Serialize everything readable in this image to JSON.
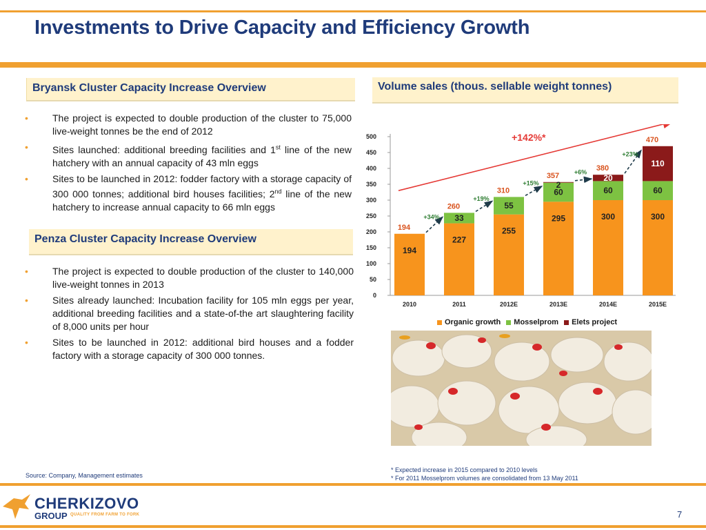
{
  "title": "Investments to Drive Capacity and Efficiency Growth",
  "bryansk": {
    "heading": "Bryansk Cluster Capacity Increase Overview",
    "bullets": [
      "The project is expected to double production of the cluster to 75,000 live-weight tonnes be the end of 2012",
      "Sites launched: additional breeding facilities and 1st line of the new hatchery with an annual capacity of 43 mln eggs",
      "Sites to be launched in 2012: fodder factory with a storage capacity of 300 000 tonnes; additional bird houses facilities; 2nd line of the new hatchery to increase annual capacity to 66 mln eggs"
    ]
  },
  "penza": {
    "heading": "Penza Cluster Capacity Increase Overview",
    "bullets": [
      "The project is expected to double production of the cluster to 140,000 live-weight tonnes in 2013",
      "Sites already launched: Incubation facility for 105 mln eggs per year, additional breeding facilities and a state-of-the art slaughtering facility of 8,000 units per hour",
      "Sites to be launched in 2012: additional bird houses and a fodder factory with a storage capacity of 300 000 tonnes."
    ]
  },
  "volume_heading": "Volume sales (thous. sellable weight tonnes)",
  "chart_data": {
    "type": "bar",
    "stacked": true,
    "categories": [
      "2010",
      "2011",
      "2012E",
      "2013E",
      "2014E",
      "2015E"
    ],
    "series": [
      {
        "name": "Organic growth",
        "color": "#f7941d",
        "values": [
          194,
          227,
          255,
          295,
          300,
          300
        ]
      },
      {
        "name": "Mosselprom",
        "color": "#7dc242",
        "values": [
          0,
          33,
          55,
          60,
          60,
          60
        ]
      },
      {
        "name": "Elets project",
        "color": "#8b1a1a",
        "values": [
          0,
          0,
          0,
          2,
          20,
          110
        ]
      }
    ],
    "totals": [
      194,
      260,
      310,
      357,
      380,
      470
    ],
    "growth_labels": [
      "+34%",
      "+19%",
      "+15%",
      "+6%",
      "+23%"
    ],
    "overall_growth": "+142%*",
    "ylim": [
      0,
      500
    ],
    "yticks": [
      0,
      50,
      100,
      150,
      200,
      250,
      300,
      350,
      400,
      450,
      500
    ],
    "legend_position": "bottom",
    "grid": false
  },
  "legend": [
    "Organic growth",
    "Mosselprom",
    "Elets project"
  ],
  "footnotes": [
    "* Expected increase in 2015 compared to 2010 levels",
    "* For 2011 Mosselprom volumes are consolidated from 13 May 2011"
  ],
  "source": "Source: Company, Management estimates",
  "logo": {
    "name": "CHERKIZOVO",
    "group": "GROUP",
    "slogan": "QUALITY FROM FARM TO FORK"
  },
  "page_number": "7",
  "colors": {
    "accent": "#f0a030",
    "title": "#1f3b7a",
    "total_label": "#d9531e",
    "growth_label": "#2e7d32"
  }
}
